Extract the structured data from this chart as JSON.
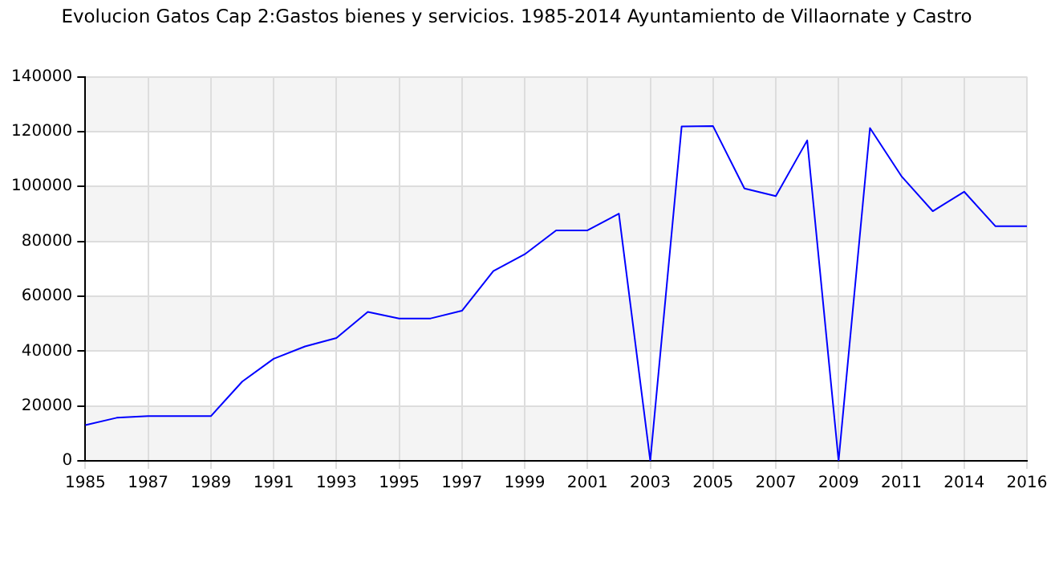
{
  "chart_data": {
    "type": "line",
    "title": "Evolucion Gatos Cap 2:Gastos bienes y servicios. 1985-2014 Ayuntamiento de Villaornate y Castro",
    "categories": [
      "1985",
      null,
      "1987",
      null,
      "1989",
      null,
      "1991",
      null,
      "1993",
      null,
      "1995",
      null,
      "1997",
      null,
      "1999",
      null,
      "2001",
      null,
      "2003",
      null,
      "2005",
      null,
      "2007",
      null,
      "2009",
      null,
      "2011",
      null,
      "2014",
      null,
      "2016"
    ],
    "series": [
      {
        "color": "#0000ff",
        "values": [
          13000,
          15700,
          16300,
          16300,
          16300,
          28900,
          37200,
          41700,
          44800,
          54300,
          51900,
          51900,
          54700,
          69200,
          75300,
          84000,
          84000,
          90100,
          0,
          121900,
          122000,
          99300,
          96500,
          116800,
          0,
          121300,
          103800,
          91000,
          98100,
          85500,
          85500
        ]
      }
    ],
    "ylim": [
      0,
      140000
    ],
    "yticks": [
      0,
      20000,
      40000,
      60000,
      80000,
      100000,
      120000,
      140000
    ],
    "grid": true,
    "legend": false,
    "marker": "none",
    "line_style": "solid"
  }
}
